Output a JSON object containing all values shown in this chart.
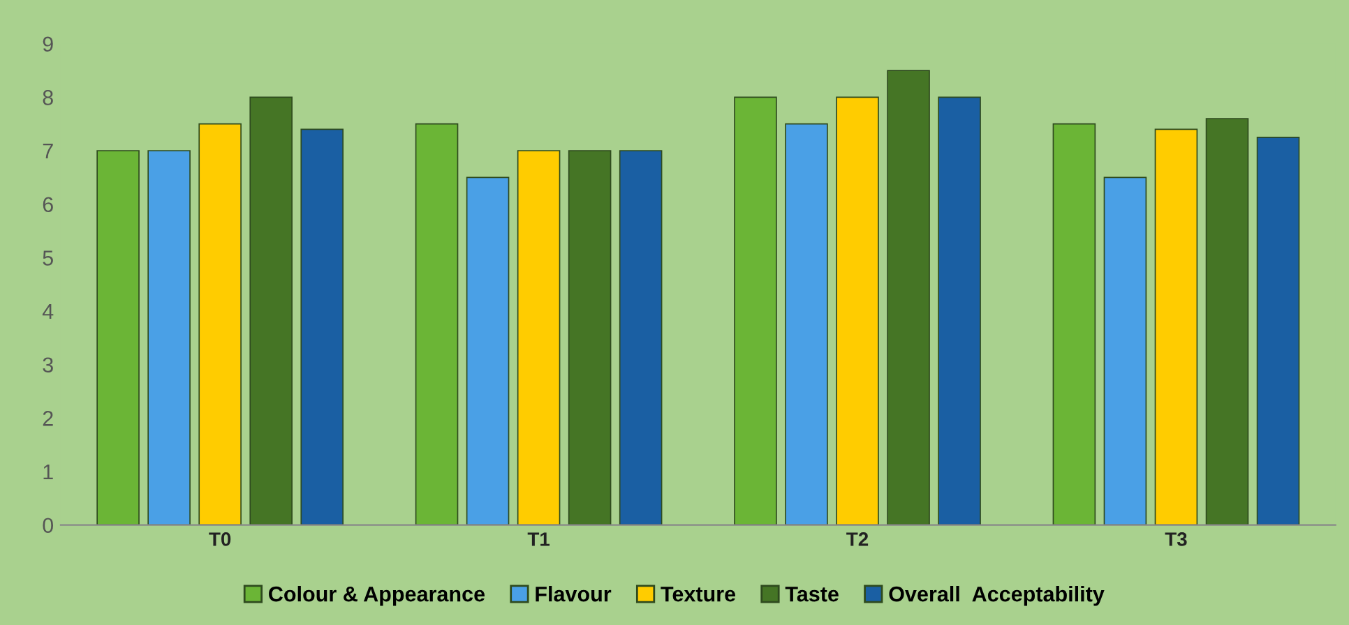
{
  "chart_data": {
    "type": "bar",
    "categories": [
      "T0",
      "T1",
      "T2",
      "T3"
    ],
    "series": [
      {
        "name": "Colour & Appearance",
        "color": "#6bb536",
        "values": [
          7,
          7.5,
          8,
          7.5
        ]
      },
      {
        "name": "Flavour",
        "color": "#4aa0e6",
        "values": [
          7,
          6.5,
          7.5,
          6.5
        ]
      },
      {
        "name": "Texture",
        "color": "#ffcc00",
        "values": [
          7.5,
          7,
          8,
          7.4
        ]
      },
      {
        "name": "Taste",
        "color": "#457525",
        "values": [
          8,
          7,
          8.5,
          7.6
        ]
      },
      {
        "name": "Overall  Acceptability",
        "color": "#1a5fa3",
        "values": [
          7.4,
          7,
          8,
          7.25
        ]
      }
    ],
    "ylim": [
      0,
      9
    ],
    "yticks": [
      0,
      1,
      2,
      3,
      4,
      5,
      6,
      7,
      8,
      9
    ],
    "grid": false,
    "legend": "bottom"
  }
}
